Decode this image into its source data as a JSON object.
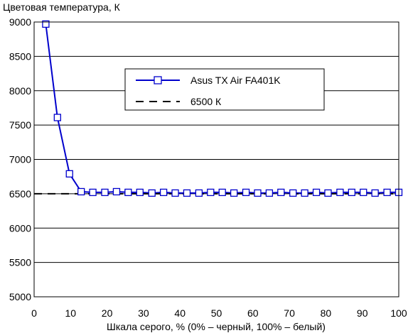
{
  "chart_data": {
    "type": "line",
    "ylabel": "Цветовая температура, К",
    "xlabel": "Шкала серого, % (0% – черный, 100% – белый)",
    "xlim": [
      0,
      100
    ],
    "ylim": [
      5000,
      9000
    ],
    "x_ticks": [
      "0",
      "10",
      "20",
      "30",
      "40",
      "50",
      "60",
      "70",
      "80",
      "90",
      "100"
    ],
    "y_ticks": [
      "5000",
      "5500",
      "6000",
      "6500",
      "7000",
      "7500",
      "8000",
      "8500",
      "9000"
    ],
    "grid": "horizontal",
    "legend_position": "top-right",
    "series": [
      {
        "name": "Asus TX Air FA401K",
        "color": "#0000cc",
        "marker": "open-square",
        "line": "solid",
        "x": [
          3.2,
          6.4,
          9.7,
          12.9,
          16.1,
          19.4,
          22.6,
          25.8,
          29.0,
          32.3,
          35.5,
          38.7,
          41.9,
          45.2,
          48.4,
          51.6,
          54.8,
          58.1,
          61.3,
          64.5,
          67.7,
          71.0,
          74.2,
          77.4,
          80.6,
          83.9,
          87.1,
          90.3,
          93.5,
          96.8,
          100
        ],
        "y": [
          8970,
          7610,
          6790,
          6530,
          6520,
          6520,
          6530,
          6520,
          6520,
          6510,
          6520,
          6510,
          6510,
          6510,
          6520,
          6520,
          6510,
          6520,
          6510,
          6510,
          6520,
          6510,
          6510,
          6520,
          6510,
          6520,
          6520,
          6520,
          6510,
          6520,
          6520
        ]
      },
      {
        "name": "6500 К",
        "color": "#000000",
        "marker": "none",
        "line": "dashed",
        "x": [
          0,
          100
        ],
        "y": [
          6500,
          6500
        ]
      }
    ]
  }
}
